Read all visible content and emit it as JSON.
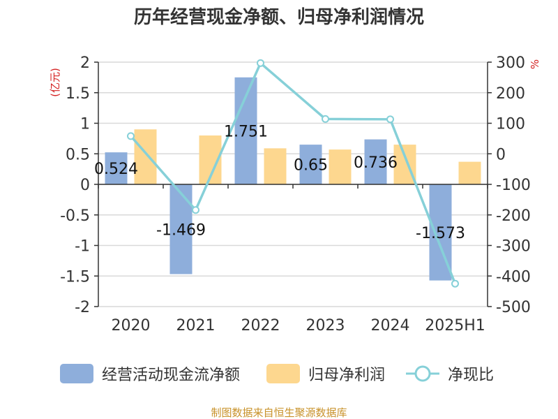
{
  "chart_data": {
    "type": "bar",
    "title": "历年经营现金净额、归母净利润情况",
    "categories": [
      "2020",
      "2021",
      "2022",
      "2023",
      "2024",
      "2025H1"
    ],
    "series": [
      {
        "name": "经营活动现金流净额",
        "kind": "bar",
        "axis": "left",
        "color": "#8eaedb",
        "values": [
          0.524,
          -1.469,
          1.751,
          0.65,
          0.736,
          -1.573
        ],
        "labels": [
          "0.524",
          "-1.469",
          "1.751",
          "0.65",
          "0.736",
          "-1.573"
        ]
      },
      {
        "name": "归母净利润",
        "kind": "bar",
        "axis": "left",
        "color": "#fdd78f",
        "values": [
          0.9,
          0.8,
          0.59,
          0.57,
          0.65,
          0.37
        ]
      },
      {
        "name": "净现比",
        "kind": "line",
        "axis": "right",
        "color": "#86d0d8",
        "values": [
          58,
          -184,
          297,
          114,
          113,
          -425
        ]
      }
    ],
    "y_left": {
      "unit": "(亿元)",
      "min": -2,
      "max": 2,
      "ticks": [
        "2",
        "1.5",
        "1",
        "0.5",
        "0",
        "-0.5",
        "-1",
        "-1.5",
        "-2"
      ]
    },
    "y_right": {
      "unit": "%",
      "min": -500,
      "max": 300,
      "ticks": [
        "300",
        "200",
        "100",
        "0",
        "-100",
        "-200",
        "-300",
        "-400",
        "-500"
      ]
    },
    "grid": true,
    "legend_position": "bottom"
  },
  "source": "制图数据来自恒生聚源数据库"
}
